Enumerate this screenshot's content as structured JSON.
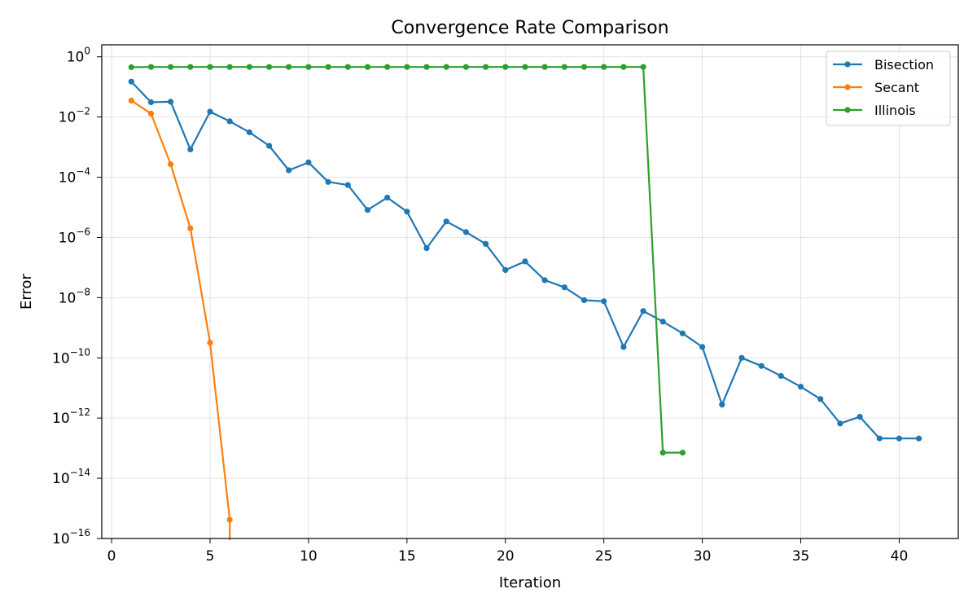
{
  "chart_data": {
    "type": "line",
    "title": "Convergence Rate Comparison",
    "xlabel": "Iteration",
    "ylabel": "Error",
    "xlim": [
      -0.5,
      43
    ],
    "ylim": [
      1e-16,
      2.5
    ],
    "yscale": "log",
    "grid": true,
    "legend_position": "top-right",
    "x_ticks": [
      0,
      5,
      10,
      15,
      20,
      25,
      30,
      35,
      40
    ],
    "y_tick_exponents": [
      0,
      -2,
      -4,
      -6,
      -8,
      -10,
      -12,
      -14,
      -16
    ],
    "series": [
      {
        "name": "Bisection",
        "color": "#1f77b4",
        "x": [
          1,
          2,
          3,
          4,
          5,
          6,
          7,
          8,
          9,
          10,
          11,
          12,
          13,
          14,
          15,
          16,
          17,
          18,
          19,
          20,
          21,
          22,
          23,
          24,
          25,
          26,
          27,
          28,
          29,
          30,
          31,
          32,
          33,
          34,
          35,
          36,
          37,
          38,
          39,
          40,
          41
        ],
        "y": [
          0.15,
          0.031,
          0.032,
          0.00084,
          0.015,
          0.0072,
          0.0031,
          0.0011,
          0.00017,
          0.00031,
          7e-05,
          5.5e-05,
          8.2e-06,
          2.1e-05,
          7.2e-06,
          4.4e-07,
          3.4e-06,
          1.5e-06,
          6.1e-07,
          8.3e-08,
          1.6e-07,
          3.8e-08,
          2.2e-08,
          8.2e-09,
          7.6e-09,
          2.3e-10,
          3.6e-09,
          1.6e-09,
          6.5e-10,
          2.3e-10,
          2.8e-12,
          1e-10,
          5.4e-11,
          2.5e-11,
          1.1e-11,
          4.3e-12,
          6.6e-13,
          1.1e-12,
          2.1e-13,
          2.1e-13,
          2.1e-13
        ]
      },
      {
        "name": "Secant",
        "color": "#ff7f0e",
        "x": [
          1,
          2,
          3,
          4,
          5,
          6
        ],
        "y": [
          0.035,
          0.013,
          0.00027,
          2e-06,
          3.2e-10,
          4.2e-16
        ],
        "tail_to_axis": true
      },
      {
        "name": "Illinois",
        "color": "#2ca02c",
        "x": [
          1,
          2,
          3,
          4,
          5,
          6,
          7,
          8,
          9,
          10,
          11,
          12,
          13,
          14,
          15,
          16,
          17,
          18,
          19,
          20,
          21,
          22,
          23,
          24,
          25,
          26,
          27,
          28,
          29
        ],
        "y": [
          0.45,
          0.46,
          0.46,
          0.46,
          0.46,
          0.46,
          0.46,
          0.46,
          0.46,
          0.46,
          0.46,
          0.46,
          0.46,
          0.46,
          0.46,
          0.46,
          0.46,
          0.46,
          0.46,
          0.46,
          0.46,
          0.46,
          0.46,
          0.46,
          0.46,
          0.46,
          0.46,
          7.1e-14,
          7.1e-14
        ]
      }
    ]
  }
}
